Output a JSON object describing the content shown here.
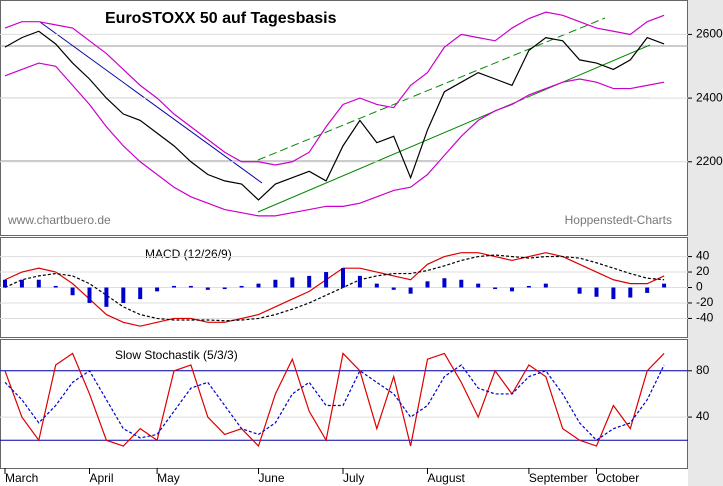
{
  "chart_data": [
    {
      "type": "line",
      "title": "EuroSTOXX 50 auf Tagesbasis",
      "source": "www.chartbuero.de",
      "credit": "Hoppenstedt-Charts",
      "ylim": [
        1970,
        2705
      ],
      "yticks": [
        2200,
        2400,
        2600
      ],
      "grid": true,
      "series": [
        {
          "name": "EuroSTOXX 50",
          "color": "#000000",
          "values": [
            2560,
            2590,
            2610,
            2570,
            2510,
            2460,
            2400,
            2350,
            2330,
            2290,
            2250,
            2200,
            2160,
            2140,
            2130,
            2080,
            2130,
            2150,
            2170,
            2140,
            2250,
            2330,
            2260,
            2280,
            2150,
            2300,
            2420,
            2450,
            2480,
            2460,
            2440,
            2550,
            2590,
            2580,
            2520,
            2510,
            2490,
            2520,
            2590,
            2570
          ]
        },
        {
          "name": "Upper band",
          "color": "#cc00cc",
          "values": [
            2620,
            2640,
            2640,
            2630,
            2620,
            2580,
            2540,
            2490,
            2440,
            2400,
            2350,
            2310,
            2270,
            2230,
            2200,
            2200,
            2190,
            2200,
            2230,
            2310,
            2380,
            2400,
            2380,
            2370,
            2440,
            2480,
            2560,
            2600,
            2590,
            2580,
            2620,
            2650,
            2670,
            2660,
            2640,
            2620,
            2610,
            2600,
            2640,
            2660
          ]
        },
        {
          "name": "Lower band",
          "color": "#cc00cc",
          "values": [
            2470,
            2490,
            2510,
            2500,
            2440,
            2380,
            2310,
            2250,
            2200,
            2160,
            2120,
            2090,
            2070,
            2050,
            2040,
            2030,
            2030,
            2040,
            2050,
            2060,
            2060,
            2070,
            2090,
            2110,
            2120,
            2160,
            2220,
            2280,
            2330,
            2360,
            2380,
            2410,
            2430,
            2450,
            2460,
            2450,
            2430,
            2430,
            2440,
            2450
          ]
        }
      ]
    },
    {
      "type": "line",
      "title": "MACD (12/26/9)",
      "ylim": [
        -64,
        64
      ],
      "yticks": [
        -40,
        -20,
        0,
        20,
        40
      ],
      "grid": true,
      "series": [
        {
          "name": "MACD",
          "color": "#dd0000",
          "values": [
            10,
            20,
            25,
            20,
            5,
            -15,
            -35,
            -45,
            -50,
            -45,
            -40,
            -40,
            -45,
            -45,
            -40,
            -35,
            -25,
            -15,
            -5,
            10,
            25,
            25,
            20,
            15,
            10,
            30,
            40,
            45,
            45,
            40,
            35,
            40,
            45,
            40,
            30,
            20,
            10,
            5,
            5,
            15
          ]
        },
        {
          "name": "Signal",
          "color": "#000000",
          "dash": true,
          "values": [
            0,
            10,
            15,
            18,
            15,
            5,
            -10,
            -25,
            -35,
            -40,
            -42,
            -42,
            -42,
            -43,
            -42,
            -40,
            -35,
            -28,
            -20,
            -10,
            0,
            10,
            15,
            18,
            18,
            22,
            28,
            35,
            40,
            42,
            40,
            38,
            40,
            40,
            38,
            32,
            25,
            18,
            12,
            10
          ]
        },
        {
          "name": "Histogram",
          "color": "#0000cc",
          "type": "bar",
          "values": [
            10,
            10,
            10,
            2,
            -10,
            -20,
            -25,
            -20,
            -15,
            -5,
            2,
            2,
            -3,
            -2,
            2,
            5,
            10,
            13,
            15,
            20,
            25,
            15,
            5,
            -3,
            -8,
            8,
            12,
            10,
            5,
            -2,
            -5,
            2,
            5,
            0,
            -8,
            -12,
            -15,
            -13,
            -7,
            5
          ]
        }
      ]
    },
    {
      "type": "line",
      "title": "Slow Stochastik (5/3/3)",
      "ylim": [
        -4,
        106.6
      ],
      "yticks": [
        40,
        80
      ],
      "levels": [
        80,
        20
      ],
      "grid": true,
      "categories": [
        "March",
        null,
        null,
        null,
        null,
        "April",
        null,
        null,
        null,
        "May",
        null,
        null,
        null,
        null,
        null,
        "June",
        null,
        null,
        null,
        null,
        "July",
        null,
        null,
        null,
        null,
        "August",
        null,
        null,
        null,
        null,
        null,
        "September",
        null,
        null,
        null,
        "October",
        null,
        null,
        null,
        null
      ],
      "series": [
        {
          "name": "%K",
          "color": "#dd0000",
          "values": [
            80,
            40,
            20,
            85,
            95,
            60,
            20,
            15,
            30,
            20,
            80,
            85,
            40,
            25,
            30,
            15,
            60,
            90,
            45,
            20,
            95,
            80,
            30,
            75,
            15,
            90,
            95,
            70,
            40,
            80,
            60,
            85,
            75,
            30,
            20,
            15,
            50,
            30,
            80,
            95
          ]
        },
        {
          "name": "%D",
          "color": "#0000cc",
          "dash": true,
          "values": [
            70,
            55,
            35,
            50,
            70,
            80,
            55,
            30,
            22,
            25,
            45,
            65,
            70,
            50,
            30,
            25,
            35,
            60,
            70,
            50,
            50,
            80,
            70,
            60,
            40,
            50,
            75,
            85,
            65,
            60,
            60,
            75,
            80,
            60,
            35,
            20,
            30,
            35,
            55,
            85
          ]
        }
      ]
    }
  ]
}
